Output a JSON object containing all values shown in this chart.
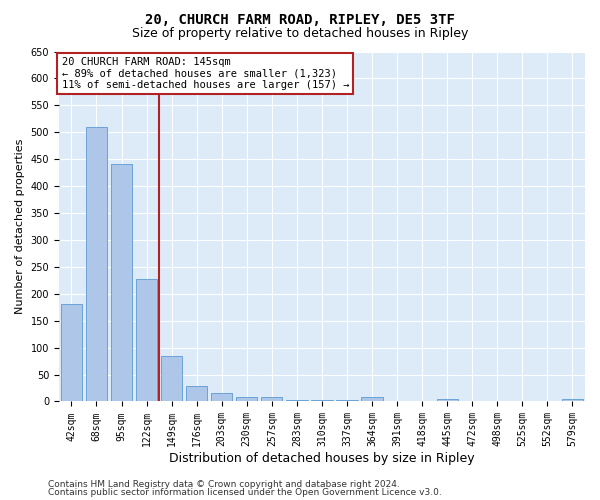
{
  "title1": "20, CHURCH FARM ROAD, RIPLEY, DE5 3TF",
  "title2": "Size of property relative to detached houses in Ripley",
  "xlabel": "Distribution of detached houses by size in Ripley",
  "ylabel": "Number of detached properties",
  "categories": [
    "42sqm",
    "68sqm",
    "95sqm",
    "122sqm",
    "149sqm",
    "176sqm",
    "203sqm",
    "230sqm",
    "257sqm",
    "283sqm",
    "310sqm",
    "337sqm",
    "364sqm",
    "391sqm",
    "418sqm",
    "445sqm",
    "472sqm",
    "498sqm",
    "525sqm",
    "552sqm",
    "579sqm"
  ],
  "values": [
    181,
    510,
    441,
    227,
    84,
    29,
    16,
    9,
    8,
    2,
    2,
    2,
    9,
    0,
    0,
    5,
    0,
    0,
    0,
    0,
    4
  ],
  "bar_color": "#aec6e8",
  "bar_edge_color": "#5b9bd5",
  "background_color": "#ddeaf8",
  "grid_color": "#ffffff",
  "vline_x": 3.5,
  "vline_color": "#b22222",
  "annotation_text": "20 CHURCH FARM ROAD: 145sqm\n← 89% of detached houses are smaller (1,323)\n11% of semi-detached houses are larger (157) →",
  "annotation_box_color": "#ffffff",
  "annotation_box_edge": "#b22222",
  "ylim": [
    0,
    650
  ],
  "yticks": [
    0,
    50,
    100,
    150,
    200,
    250,
    300,
    350,
    400,
    450,
    500,
    550,
    600,
    650
  ],
  "footer1": "Contains HM Land Registry data © Crown copyright and database right 2024.",
  "footer2": "Contains public sector information licensed under the Open Government Licence v3.0.",
  "title1_fontsize": 10,
  "title2_fontsize": 9,
  "xlabel_fontsize": 9,
  "ylabel_fontsize": 8,
  "tick_fontsize": 7,
  "footer_fontsize": 6.5,
  "annotation_fontsize": 7.5
}
